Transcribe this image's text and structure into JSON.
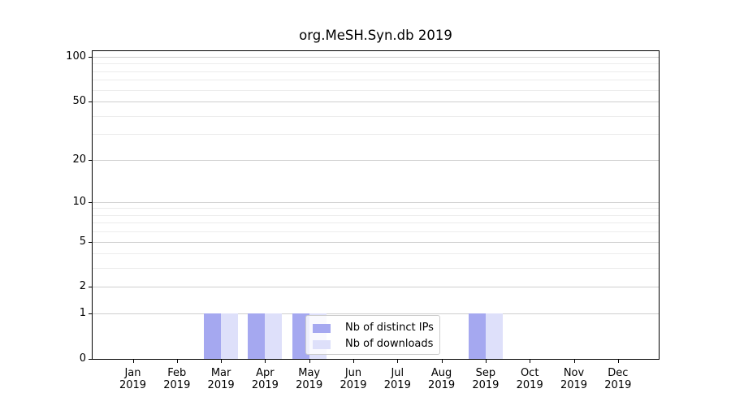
{
  "chart_data": {
    "type": "bar",
    "title": "org.MeSH.Syn.db 2019",
    "categories": [
      "Jan 2019",
      "Feb 2019",
      "Mar 2019",
      "Apr 2019",
      "May 2019",
      "Jun 2019",
      "Jul 2019",
      "Aug 2019",
      "Sep 2019",
      "Oct 2019",
      "Nov 2019",
      "Dec 2019"
    ],
    "series": [
      {
        "name": "Nb of distinct IPs",
        "color": "#a5a8f0",
        "values": [
          0,
          0,
          1,
          1,
          1,
          0,
          0,
          0,
          1,
          0,
          0,
          0
        ]
      },
      {
        "name": "Nb of downloads",
        "color": "#dee0fa",
        "values": [
          0,
          0,
          1,
          1,
          1,
          0,
          0,
          0,
          1,
          0,
          0,
          0
        ]
      }
    ],
    "yscale": "log(value+1)",
    "ylim": [
      0,
      100
    ],
    "yticks": [
      0,
      1,
      2,
      5,
      10,
      20,
      50,
      100
    ],
    "minor_gridlines": [
      3,
      4,
      6,
      7,
      8,
      9,
      30,
      40,
      60,
      70,
      80,
      90
    ],
    "xlabel": "",
    "ylabel": "",
    "grid": "horizontal major and minor",
    "legend_position": "lower center",
    "colors": {
      "major_grid": "#cfcfcf",
      "minor_grid": "#ececec",
      "axis": "#000000",
      "legend_border": "#cccccc",
      "background": "#ffffff"
    }
  }
}
